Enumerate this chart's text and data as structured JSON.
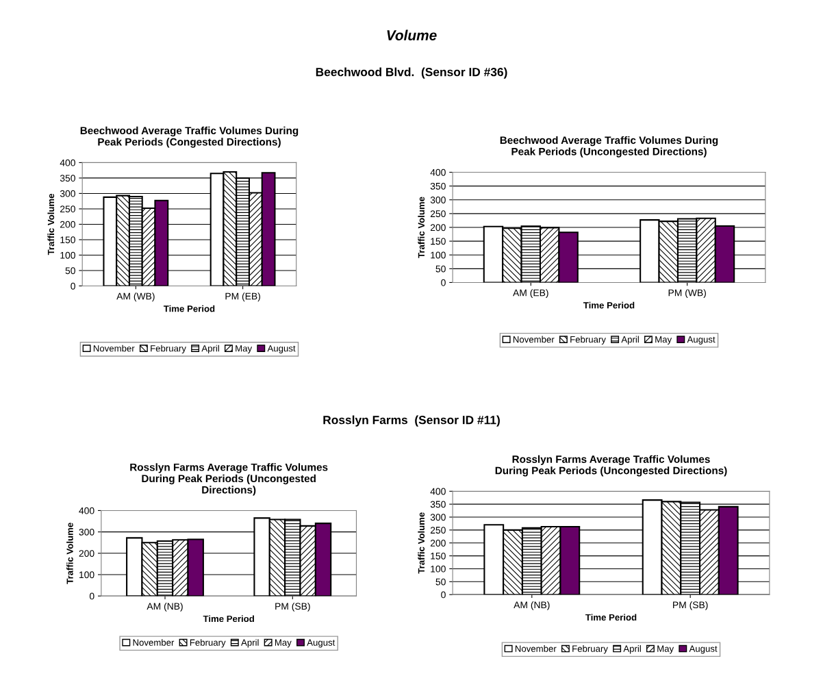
{
  "chart_data": [
    {
      "type": "bar",
      "title": "Beechwood Average Traffic Volumes During\nPeak Periods (Congested Directions)",
      "xlabel": "Time Period",
      "ylabel": "Traffic Volume",
      "annotations": [
        "Volume",
        "Beechwood Blvd.  (Sensor ID #36)"
      ],
      "categories": [
        "AM (WB)",
        "PM (EB)"
      ],
      "ylim": [
        0,
        400
      ],
      "yticks": [
        0,
        50,
        100,
        150,
        200,
        250,
        300,
        350,
        400
      ],
      "grid": "y",
      "legend": "bottom",
      "series": [
        {
          "name": "November",
          "color": "#ffffff",
          "values": [
            288,
            365
          ]
        },
        {
          "name": "February",
          "color": "#000000",
          "values": [
            293,
            370
          ]
        },
        {
          "name": "April",
          "color": "#000000",
          "values": [
            290,
            350
          ]
        },
        {
          "name": "May",
          "color": "#000000",
          "values": [
            252,
            302
          ]
        },
        {
          "name": "August",
          "color": "#660066",
          "values": [
            277,
            367
          ]
        }
      ]
    },
    {
      "type": "bar",
      "title": "Beechwood Average Traffic Volumes During\nPeak Periods (Uncongested Directions)",
      "xlabel": "Time Period",
      "ylabel": "Traffic Volume",
      "categories": [
        "AM (EB)",
        "PM (WB)"
      ],
      "ylim": [
        0,
        400
      ],
      "yticks": [
        0,
        50,
        100,
        150,
        200,
        250,
        300,
        350,
        400
      ],
      "grid": "y",
      "legend": "bottom",
      "series": [
        {
          "name": "November",
          "color": "#ffffff",
          "values": [
            203,
            227
          ]
        },
        {
          "name": "February",
          "color": "#000000",
          "values": [
            197,
            222
          ]
        },
        {
          "name": "April",
          "color": "#000000",
          "values": [
            204,
            231
          ]
        },
        {
          "name": "May",
          "color": "#000000",
          "values": [
            199,
            233
          ]
        },
        {
          "name": "August",
          "color": "#660066",
          "values": [
            182,
            205
          ]
        }
      ]
    },
    {
      "type": "bar",
      "title": "Rosslyn Farms Average Traffic Volumes\nDuring Peak Periods (Uncongested\nDirections)",
      "xlabel": "Time Period",
      "ylabel": "Traffic Volume",
      "annotations": [
        "Rosslyn Farms  (Sensor ID #11)"
      ],
      "categories": [
        "AM (NB)",
        "PM (SB)"
      ],
      "ylim": [
        0,
        400
      ],
      "yticks": [
        0,
        100,
        200,
        300,
        400
      ],
      "grid": "y",
      "legend": "bottom",
      "series": [
        {
          "name": "November",
          "color": "#ffffff",
          "values": [
            272,
            365
          ]
        },
        {
          "name": "February",
          "color": "#000000",
          "values": [
            250,
            358
          ]
        },
        {
          "name": "April",
          "color": "#000000",
          "values": [
            257,
            358
          ]
        },
        {
          "name": "May",
          "color": "#000000",
          "values": [
            263,
            328
          ]
        },
        {
          "name": "August",
          "color": "#660066",
          "values": [
            265,
            340
          ]
        }
      ]
    },
    {
      "type": "bar",
      "title": "Rosslyn Farms Average Traffic Volumes\nDuring Peak Periods (Uncongested Directions)",
      "xlabel": "Time Period",
      "ylabel": "Traffic Volume",
      "categories": [
        "AM (NB)",
        "PM (SB)"
      ],
      "ylim": [
        0,
        400
      ],
      "yticks": [
        0,
        50,
        100,
        150,
        200,
        250,
        300,
        350,
        400
      ],
      "grid": "y",
      "legend": "bottom",
      "series": [
        {
          "name": "November",
          "color": "#ffffff",
          "values": [
            270,
            366
          ]
        },
        {
          "name": "February",
          "color": "#000000",
          "values": [
            250,
            360
          ]
        },
        {
          "name": "April",
          "color": "#000000",
          "values": [
            258,
            357
          ]
        },
        {
          "name": "May",
          "color": "#000000",
          "values": [
            263,
            328
          ]
        },
        {
          "name": "August",
          "color": "#660066",
          "values": [
            263,
            340
          ]
        }
      ]
    }
  ]
}
